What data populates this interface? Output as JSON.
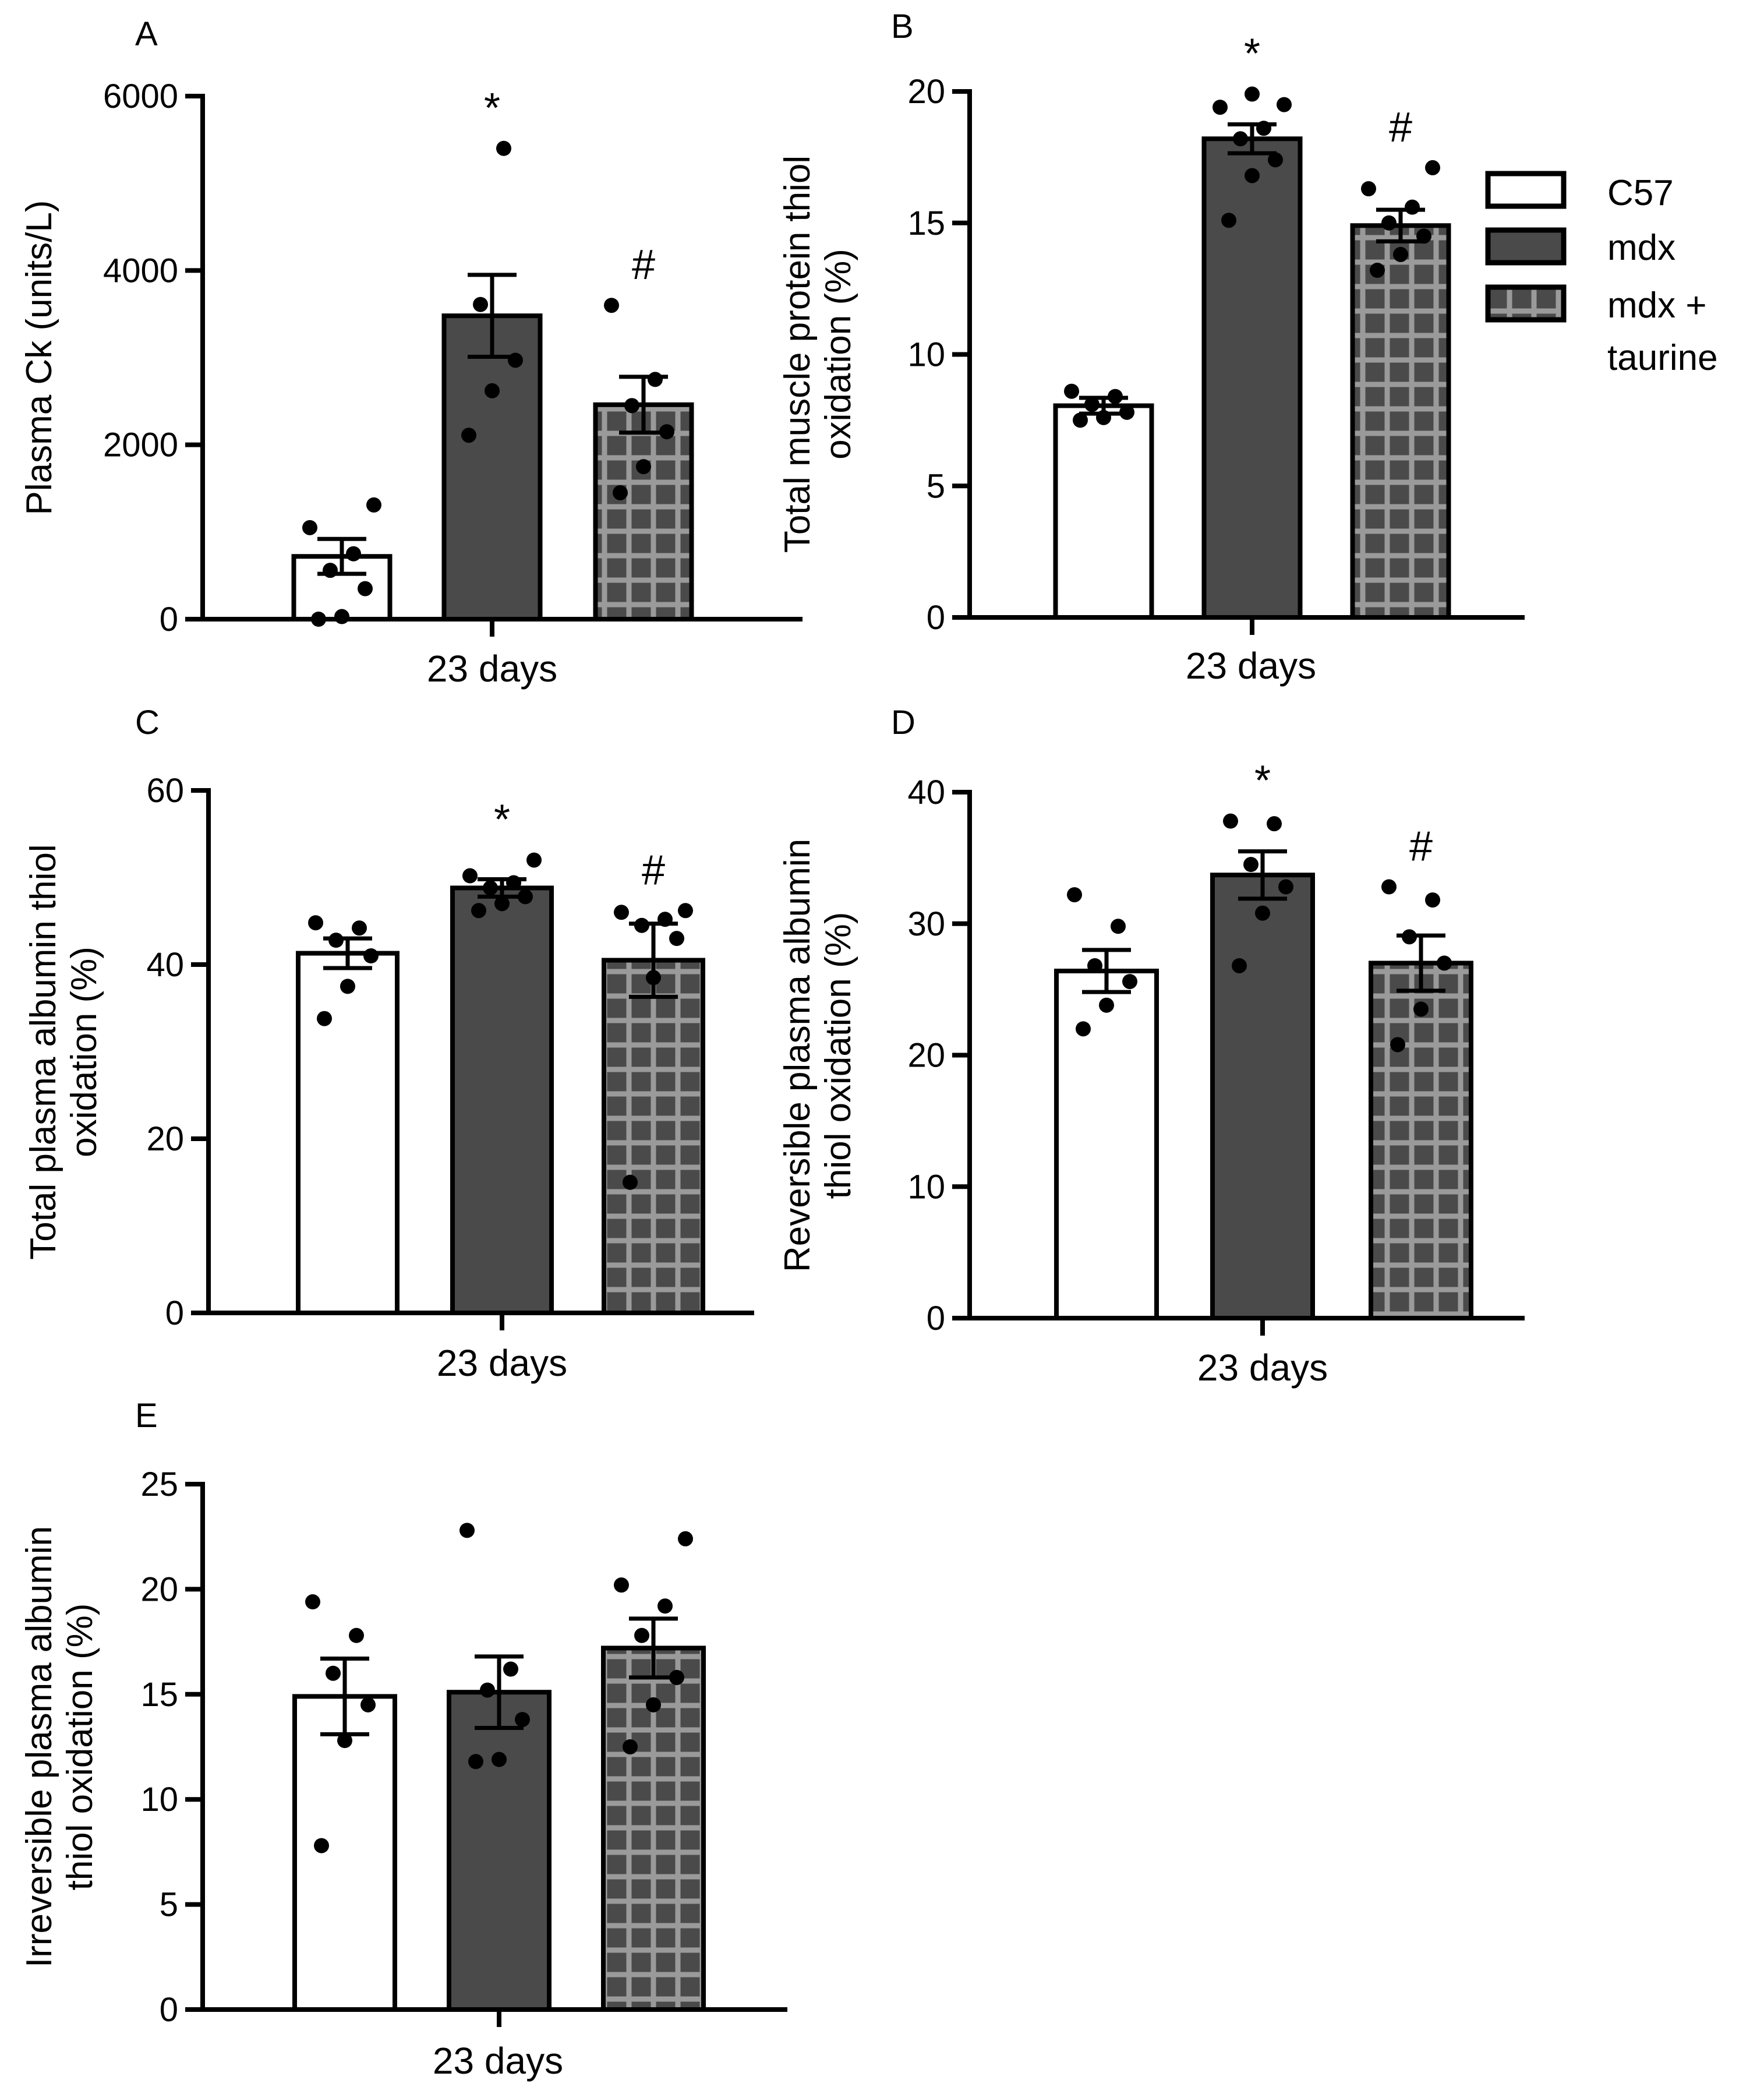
{
  "legend": {
    "items": [
      {
        "label": "C57",
        "style": "white"
      },
      {
        "label": "mdx",
        "style": "dark"
      },
      {
        "label": "mdx +",
        "label2": "taurine",
        "style": "grid"
      }
    ]
  },
  "colors": {
    "bar_dark": "#4a4a4a",
    "bar_white": "#ffffff",
    "grid_line": "#9a9a9a",
    "axis": "#000000"
  },
  "chart_data": [
    {
      "panel": "A",
      "type": "bar",
      "title": "",
      "xlabel": "23 days",
      "ylabel": [
        "Plasma Ck (units/L)"
      ],
      "ylim": [
        0,
        6000
      ],
      "yticks": [
        0,
        2000,
        4000,
        6000
      ],
      "categories": [
        "C57",
        "mdx",
        "mdx + taurine"
      ],
      "values": [
        720,
        3480,
        2460
      ],
      "sem": [
        200,
        470,
        320
      ],
      "points": [
        [
          0,
          30,
          350,
          560,
          750,
          1050,
          1310
        ],
        [
          2110,
          2620,
          2970,
          3610,
          5400
        ],
        [
          1450,
          1750,
          2150,
          2450,
          2750,
          3600
        ]
      ],
      "significance": [
        "",
        "*",
        "#"
      ]
    },
    {
      "panel": "B",
      "type": "bar",
      "title": "",
      "xlabel": "23 days",
      "ylabel": [
        "Total muscle protein thiol",
        "oxidation (%)"
      ],
      "ylim": [
        0,
        20
      ],
      "yticks": [
        0,
        5,
        10,
        15,
        20
      ],
      "categories": [
        "C57",
        "mdx",
        "mdx + taurine"
      ],
      "values": [
        8.05,
        18.2,
        14.9
      ],
      "sem": [
        0.3,
        0.55,
        0.6
      ],
      "points": [
        [
          7.5,
          7.6,
          7.8,
          8.1,
          8.4,
          8.6
        ],
        [
          15.1,
          16.8,
          17.4,
          18.2,
          18.6,
          19.4,
          19.5,
          19.9
        ],
        [
          13.2,
          13.8,
          14.5,
          15.0,
          15.6,
          16.3,
          17.1
        ]
      ],
      "significance": [
        "",
        "*",
        "#"
      ]
    },
    {
      "panel": "C",
      "type": "bar",
      "title": "",
      "xlabel": "23 days",
      "ylabel": [
        "Total plasma albumin thiol",
        "oxidation (%)"
      ],
      "ylim": [
        0,
        60
      ],
      "yticks": [
        0,
        20,
        40,
        60
      ],
      "categories": [
        "C57",
        "mdx",
        "mdx + taurine"
      ],
      "values": [
        41.3,
        48.8,
        40.5
      ],
      "sem": [
        1.7,
        1.0,
        4.2
      ],
      "points": [
        [
          33.8,
          37.5,
          41.0,
          42.8,
          44.2,
          44.8
        ],
        [
          46.2,
          47.0,
          47.8,
          48.8,
          49.4,
          50.2,
          52.0
        ],
        [
          15.0,
          38.5,
          43.0,
          44.5,
          45.2,
          46.0,
          46.2
        ]
      ],
      "significance": [
        "",
        "*",
        "#"
      ]
    },
    {
      "panel": "D",
      "type": "bar",
      "title": "",
      "xlabel": "23 days",
      "ylabel": [
        "Reversible plasma albumin",
        "thiol oxidation (%)"
      ],
      "ylim": [
        0,
        40
      ],
      "yticks": [
        0,
        10,
        20,
        30,
        40
      ],
      "categories": [
        "C57",
        "mdx",
        "mdx + taurine"
      ],
      "values": [
        26.4,
        33.7,
        27.0
      ],
      "sem": [
        1.6,
        1.8,
        2.1
      ],
      "points": [
        [
          22.0,
          23.8,
          25.6,
          26.8,
          29.8,
          32.2
        ],
        [
          26.8,
          30.8,
          32.8,
          34.5,
          37.6,
          37.8
        ],
        [
          20.8,
          23.5,
          27.0,
          29.0,
          31.8,
          32.8
        ]
      ],
      "significance": [
        "",
        "*",
        "#"
      ]
    },
    {
      "panel": "E",
      "type": "bar",
      "title": "",
      "xlabel": "23 days",
      "ylabel": [
        "Irreversible plasma albumin",
        "thiol oxidation (%)"
      ],
      "ylim": [
        0,
        25
      ],
      "yticks": [
        0,
        5,
        10,
        15,
        20,
        25
      ],
      "categories": [
        "C57",
        "mdx",
        "mdx + taurine"
      ],
      "values": [
        14.9,
        15.1,
        17.2
      ],
      "sem": [
        1.8,
        1.7,
        1.4
      ],
      "points": [
        [
          7.8,
          12.8,
          14.5,
          16.0,
          17.8,
          19.4
        ],
        [
          11.8,
          11.9,
          13.8,
          15.2,
          16.2,
          22.8
        ],
        [
          12.5,
          14.5,
          15.8,
          17.8,
          19.2,
          20.2,
          22.4
        ]
      ],
      "significance": [
        "",
        "",
        ""
      ]
    }
  ]
}
